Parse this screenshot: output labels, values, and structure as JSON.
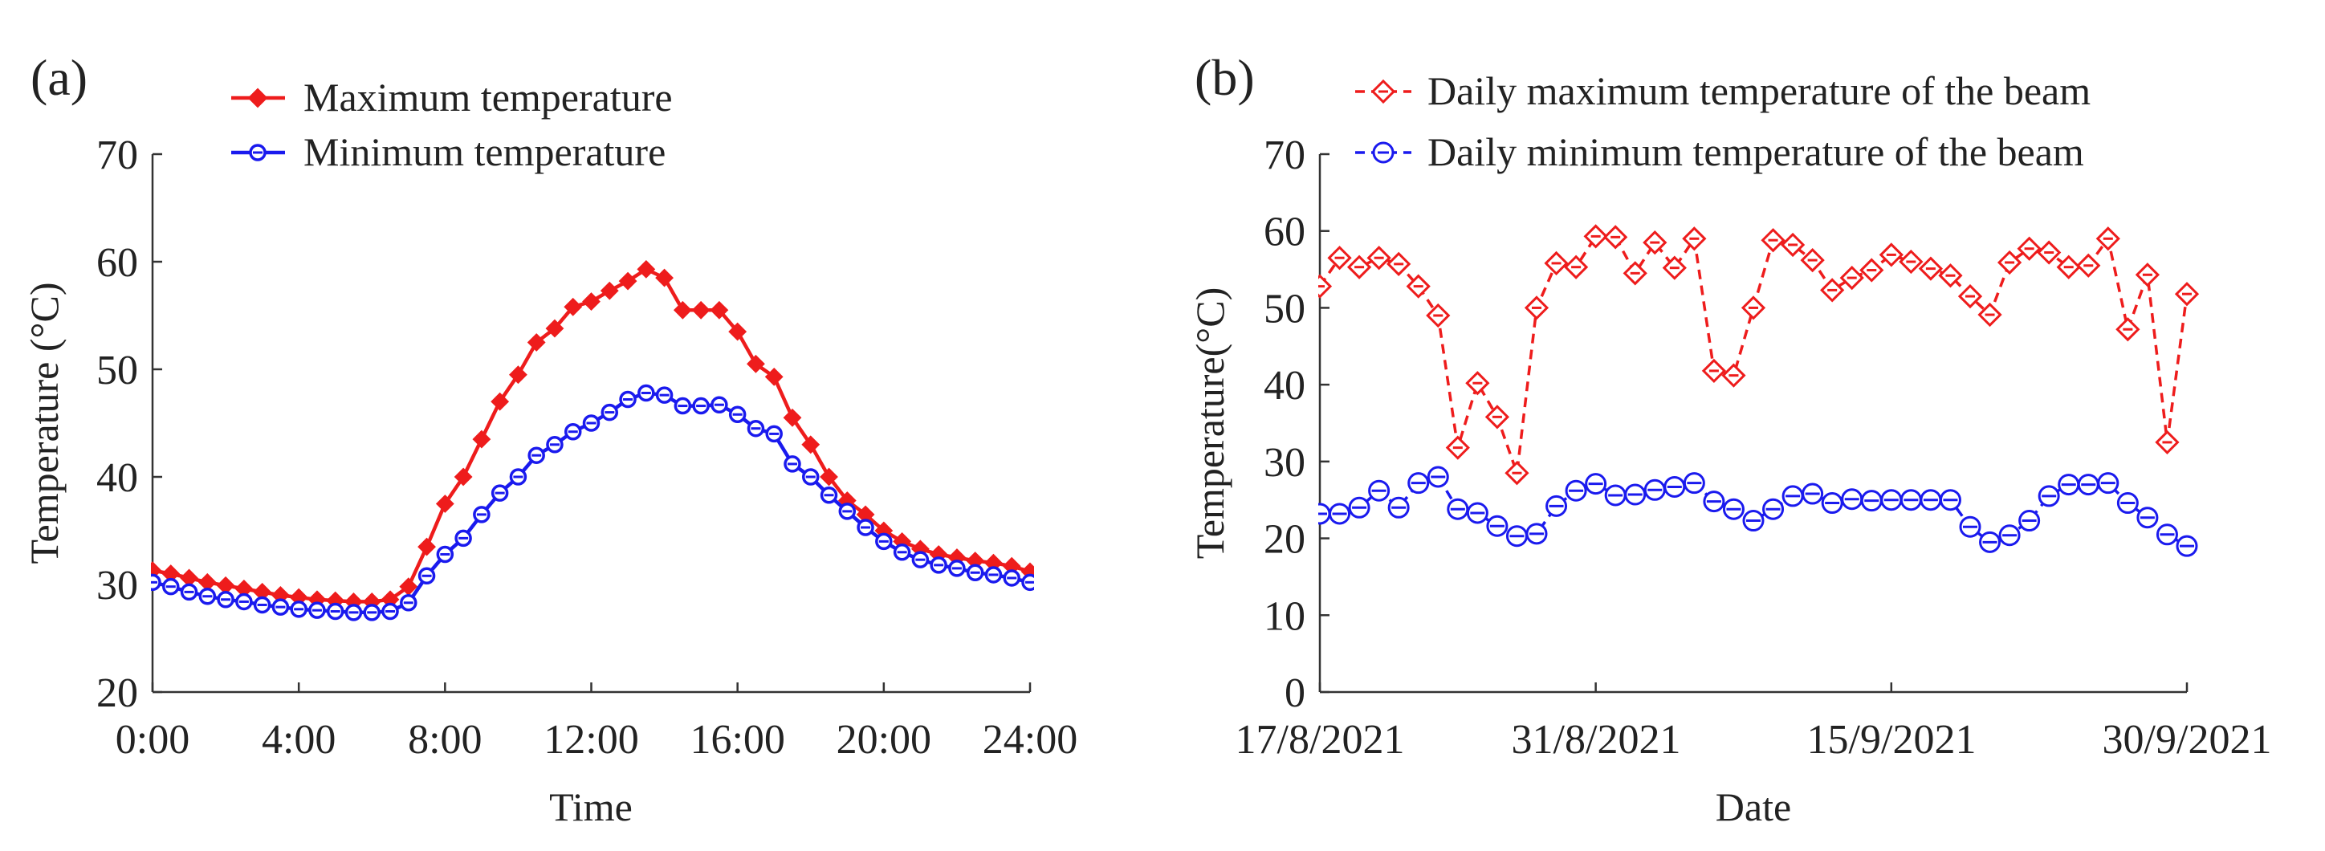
{
  "colors": {
    "max": "#ee1c1c",
    "min": "#1a1aee",
    "axis": "#333333",
    "text": "#222222"
  },
  "chart_data": [
    {
      "panel": "(a)",
      "type": "line",
      "xlabel": "Time",
      "ylabel": "Temperature (°C)",
      "xlim": [
        0,
        24
      ],
      "ylim": [
        20,
        70
      ],
      "xticks": [
        0,
        4,
        8,
        12,
        16,
        20,
        24
      ],
      "xtick_labels": [
        "0:00",
        "4:00",
        "8:00",
        "12:00",
        "16:00",
        "20:00",
        "24:00"
      ],
      "yticks": [
        20,
        30,
        40,
        50,
        60,
        70
      ],
      "ytick_labels": [
        "20",
        "30",
        "40",
        "50",
        "60",
        "70"
      ],
      "legend_position": "top-left",
      "series": [
        {
          "name": "Maximum temperature",
          "color": "#ee1c1c",
          "marker": "filled-diamond",
          "line": "solid",
          "x": [
            0,
            0.5,
            1,
            1.5,
            2,
            2.5,
            3,
            3.5,
            4,
            4.5,
            5,
            5.5,
            6,
            6.5,
            7,
            7.5,
            8,
            8.5,
            9,
            9.5,
            10,
            10.5,
            11,
            11.5,
            12,
            12.5,
            13,
            13.5,
            14,
            14.5,
            15,
            15.5,
            16,
            16.5,
            17,
            17.5,
            18,
            18.5,
            19,
            19.5,
            20,
            20.5,
            21,
            21.5,
            22,
            22.5,
            23,
            23.5,
            24
          ],
          "values": [
            31.3,
            31.0,
            30.6,
            30.2,
            29.9,
            29.6,
            29.3,
            29.0,
            28.8,
            28.6,
            28.5,
            28.4,
            28.4,
            28.6,
            29.8,
            33.5,
            37.5,
            40.0,
            43.5,
            47.0,
            49.5,
            52.5,
            53.8,
            55.8,
            56.3,
            57.3,
            58.2,
            59.3,
            58.5,
            55.5,
            55.5,
            55.5,
            53.5,
            50.5,
            49.3,
            45.5,
            43.0,
            40.0,
            37.8,
            36.5,
            35.0,
            34.0,
            33.3,
            32.8,
            32.5,
            32.2,
            32.0,
            31.7,
            31.2
          ]
        },
        {
          "name": "Minimum temperature",
          "color": "#1a1aee",
          "marker": "open-circle",
          "line": "solid",
          "x": [
            0,
            0.5,
            1,
            1.5,
            2,
            2.5,
            3,
            3.5,
            4,
            4.5,
            5,
            5.5,
            6,
            6.5,
            7,
            7.5,
            8,
            8.5,
            9,
            9.5,
            10,
            10.5,
            11,
            11.5,
            12,
            12.5,
            13,
            13.5,
            14,
            14.5,
            15,
            15.5,
            16,
            16.5,
            17,
            17.5,
            18,
            18.5,
            19,
            19.5,
            20,
            20.5,
            21,
            21.5,
            22,
            22.5,
            23,
            23.5,
            24
          ],
          "values": [
            30.2,
            29.8,
            29.3,
            28.9,
            28.6,
            28.4,
            28.1,
            27.9,
            27.7,
            27.6,
            27.5,
            27.4,
            27.4,
            27.5,
            28.3,
            30.8,
            32.8,
            34.3,
            36.5,
            38.5,
            40.0,
            42.0,
            43.0,
            44.2,
            45.0,
            46.0,
            47.2,
            47.8,
            47.6,
            46.6,
            46.6,
            46.7,
            45.8,
            44.5,
            44.0,
            41.2,
            40.0,
            38.3,
            36.8,
            35.3,
            34.0,
            33.0,
            32.3,
            31.8,
            31.5,
            31.1,
            30.9,
            30.6,
            30.2
          ]
        }
      ]
    },
    {
      "panel": "(b)",
      "type": "line",
      "xlabel": "Date",
      "ylabel": "Temperature(°C)",
      "xlim": [
        0,
        44
      ],
      "ylim": [
        0,
        70
      ],
      "xticks": [
        0,
        14,
        29,
        44
      ],
      "xtick_labels": [
        "17/8/2021",
        "31/8/2021",
        "15/9/2021",
        "30/9/2021"
      ],
      "yticks": [
        0,
        10,
        20,
        30,
        40,
        50,
        60,
        70
      ],
      "ytick_labels": [
        "0",
        "10",
        "20",
        "30",
        "40",
        "50",
        "60",
        "70"
      ],
      "legend_position": "top",
      "series": [
        {
          "name": "Daily maximum temperature of the beam",
          "color": "#ee1c1c",
          "marker": "open-diamond",
          "line": "dashed",
          "values": [
            52.8,
            56.5,
            55.3,
            56.5,
            55.7,
            52.8,
            49.0,
            31.8,
            40.2,
            35.8,
            28.5,
            50.0,
            55.8,
            55.3,
            59.3,
            59.2,
            54.5,
            58.5,
            55.2,
            59.0,
            41.8,
            41.2,
            50.0,
            58.8,
            58.2,
            56.2,
            52.3,
            53.9,
            54.9,
            56.9,
            56.0,
            55.1,
            54.2,
            51.5,
            49.1,
            55.9,
            57.7,
            57.2,
            55.3,
            55.5,
            59.0,
            47.2,
            54.3,
            32.5,
            51.8
          ]
        },
        {
          "name": "Daily minimum temperature of the beam",
          "color": "#1a1aee",
          "marker": "open-circle",
          "line": "dashed",
          "values": [
            23.2,
            23.2,
            24.0,
            26.2,
            24.0,
            27.2,
            28.0,
            23.8,
            23.3,
            21.6,
            20.3,
            20.6,
            24.2,
            26.2,
            27.1,
            25.6,
            25.7,
            26.3,
            26.7,
            27.2,
            24.8,
            23.8,
            22.3,
            23.8,
            25.5,
            25.8,
            24.6,
            25.1,
            24.9,
            25.0,
            25.0,
            25.0,
            25.0,
            21.5,
            19.5,
            20.4,
            22.3,
            25.5,
            27.0,
            27.0,
            27.2,
            24.6,
            22.7,
            20.5,
            19.0
          ]
        }
      ]
    }
  ]
}
